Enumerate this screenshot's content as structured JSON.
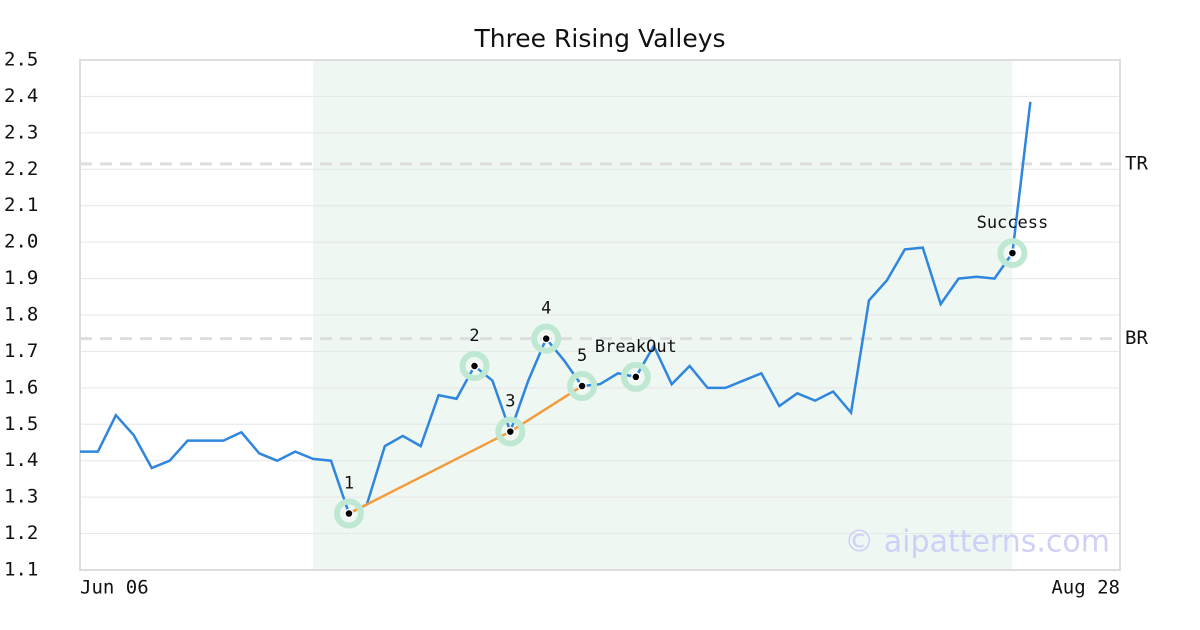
{
  "chart_data": {
    "type": "line",
    "title": "Three Rising Valleys",
    "categories": [
      "Jun 06",
      null,
      null,
      null,
      null,
      null,
      null,
      null,
      null,
      null,
      null,
      null,
      null,
      null,
      null,
      null,
      null,
      null,
      null,
      null,
      null,
      null,
      null,
      null,
      null,
      null,
      null,
      null,
      null,
      null,
      null,
      null,
      null,
      null,
      null,
      null,
      null,
      null,
      null,
      null,
      null,
      null,
      null,
      null,
      null,
      null,
      null,
      null,
      null,
      null,
      null,
      null,
      null,
      null,
      null,
      null,
      null,
      null,
      "Aug 28"
    ],
    "series": [
      {
        "color": "#2e86de",
        "values": [
          1.425,
          1.425,
          1.525,
          1.47,
          1.38,
          1.4,
          1.455,
          1.455,
          1.455,
          1.478,
          1.42,
          1.4,
          1.425,
          1.405,
          1.4,
          1.255,
          1.28,
          1.44,
          1.468,
          1.44,
          1.58,
          1.57,
          1.66,
          1.62,
          1.48,
          1.62,
          1.735,
          1.675,
          1.605,
          1.61,
          1.64,
          1.63,
          1.715,
          1.61,
          1.66,
          1.6,
          1.6,
          1.62,
          1.64,
          1.55,
          1.585,
          1.565,
          1.59,
          1.532,
          1.84,
          1.895,
          1.98,
          1.985,
          1.83,
          1.9,
          1.905,
          1.9,
          1.97,
          2.385,
          null,
          null,
          null,
          null,
          null
        ]
      }
    ],
    "ylim": [
      1.1,
      2.5
    ],
    "yticks": [
      1.1,
      1.2,
      1.3,
      1.4,
      1.5,
      1.6,
      1.7,
      1.8,
      1.9,
      {
        "value": 2,
        "label": "2.0"
      },
      2.1,
      2.2,
      2.3,
      2.4,
      2.5
    ],
    "grid": true,
    "shaded_range": [
      13,
      52
    ],
    "shade_color": "#eef7f2",
    "reference_lines": [
      {
        "label": "TR",
        "value": 2.215
      },
      {
        "label": "BR",
        "value": 1.735
      }
    ],
    "points": [
      {
        "label": "1",
        "index": 15
      },
      {
        "label": "2",
        "index": 22
      },
      {
        "label": "3",
        "index": 24
      },
      {
        "label": "4",
        "index": 26
      },
      {
        "label": "5",
        "index": 28
      },
      {
        "label": "BreakOut",
        "index": 31
      },
      {
        "label": "Success",
        "index": 52
      }
    ],
    "trend_line": {
      "color": "#f39c3d",
      "indices": [
        15,
        24,
        28
      ]
    },
    "watermark": "© aipatterns.com"
  }
}
